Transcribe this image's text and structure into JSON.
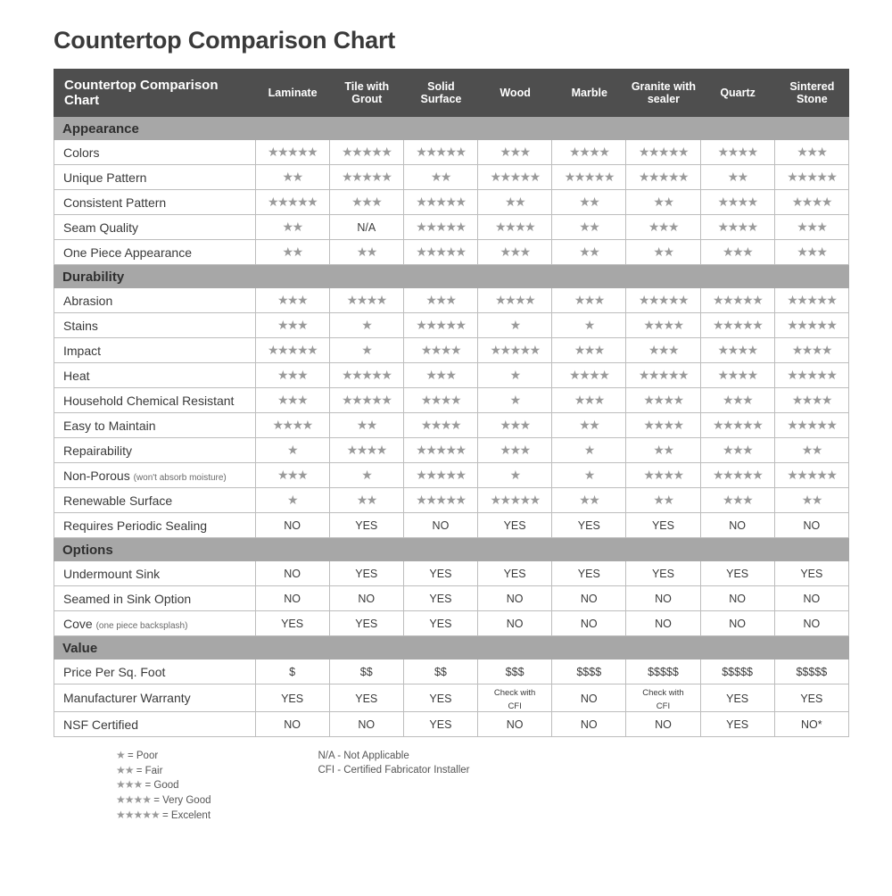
{
  "title": "Countertop Comparison Chart",
  "header_label": "Countertop Comparison Chart",
  "columns": [
    "Laminate",
    "Tile with Grout",
    "Solid Surface",
    "Wood",
    "Marble",
    "Granite with sealer",
    "Quartz",
    "Sintered Stone"
  ],
  "sections": [
    {
      "name": "Appearance",
      "rows": [
        {
          "label": "Colors",
          "cells": [
            {
              "stars": 5
            },
            {
              "stars": 5
            },
            {
              "stars": 5
            },
            {
              "stars": 3
            },
            {
              "stars": 4
            },
            {
              "stars": 5
            },
            {
              "stars": 4
            },
            {
              "stars": 3
            }
          ]
        },
        {
          "label": "Unique Pattern",
          "cells": [
            {
              "stars": 2
            },
            {
              "stars": 5
            },
            {
              "stars": 2
            },
            {
              "stars": 5
            },
            {
              "stars": 5
            },
            {
              "stars": 5
            },
            {
              "stars": 2
            },
            {
              "stars": 5
            }
          ]
        },
        {
          "label": "Consistent Pattern",
          "cells": [
            {
              "stars": 5
            },
            {
              "stars": 3
            },
            {
              "stars": 5
            },
            {
              "stars": 2
            },
            {
              "stars": 2
            },
            {
              "stars": 2
            },
            {
              "stars": 4
            },
            {
              "stars": 4
            }
          ]
        },
        {
          "label": "Seam Quality",
          "cells": [
            {
              "stars": 2
            },
            {
              "text": "N/A"
            },
            {
              "stars": 5
            },
            {
              "stars": 4
            },
            {
              "stars": 2
            },
            {
              "stars": 3
            },
            {
              "stars": 4
            },
            {
              "stars": 3
            }
          ]
        },
        {
          "label": "One Piece Appearance",
          "cells": [
            {
              "stars": 2
            },
            {
              "stars": 2
            },
            {
              "stars": 5
            },
            {
              "stars": 3
            },
            {
              "stars": 2
            },
            {
              "stars": 2
            },
            {
              "stars": 3
            },
            {
              "stars": 3
            }
          ]
        }
      ]
    },
    {
      "name": "Durability",
      "rows": [
        {
          "label": "Abrasion",
          "cells": [
            {
              "stars": 3
            },
            {
              "stars": 4
            },
            {
              "stars": 3
            },
            {
              "stars": 4
            },
            {
              "stars": 3
            },
            {
              "stars": 5
            },
            {
              "stars": 5
            },
            {
              "stars": 5
            }
          ]
        },
        {
          "label": "Stains",
          "cells": [
            {
              "stars": 3
            },
            {
              "stars": 1
            },
            {
              "stars": 5
            },
            {
              "stars": 1
            },
            {
              "stars": 1
            },
            {
              "stars": 4
            },
            {
              "stars": 5
            },
            {
              "stars": 5
            }
          ]
        },
        {
          "label": "Impact",
          "cells": [
            {
              "stars": 5
            },
            {
              "stars": 1
            },
            {
              "stars": 4
            },
            {
              "stars": 5
            },
            {
              "stars": 3
            },
            {
              "stars": 3
            },
            {
              "stars": 4
            },
            {
              "stars": 4
            }
          ]
        },
        {
          "label": "Heat",
          "cells": [
            {
              "stars": 3
            },
            {
              "stars": 5
            },
            {
              "stars": 3
            },
            {
              "stars": 1
            },
            {
              "stars": 4
            },
            {
              "stars": 5
            },
            {
              "stars": 4
            },
            {
              "stars": 5
            }
          ]
        },
        {
          "label": "Household Chemical Resistant",
          "cells": [
            {
              "stars": 3
            },
            {
              "stars": 5
            },
            {
              "stars": 4
            },
            {
              "stars": 1
            },
            {
              "stars": 3
            },
            {
              "stars": 4
            },
            {
              "stars": 3
            },
            {
              "stars": 4
            }
          ]
        },
        {
          "label": "Easy to Maintain",
          "cells": [
            {
              "stars": 4
            },
            {
              "stars": 2
            },
            {
              "stars": 4
            },
            {
              "stars": 3
            },
            {
              "stars": 2
            },
            {
              "stars": 4
            },
            {
              "stars": 5
            },
            {
              "stars": 5
            }
          ]
        },
        {
          "label": "Repairability",
          "cells": [
            {
              "stars": 1
            },
            {
              "stars": 4
            },
            {
              "stars": 5
            },
            {
              "stars": 3
            },
            {
              "stars": 1
            },
            {
              "stars": 2
            },
            {
              "stars": 3
            },
            {
              "stars": 2
            }
          ]
        },
        {
          "label": "Non-Porous",
          "sub": "(won't absorb moisture)",
          "cells": [
            {
              "stars": 3
            },
            {
              "stars": 1
            },
            {
              "stars": 5
            },
            {
              "stars": 1
            },
            {
              "stars": 1
            },
            {
              "stars": 4
            },
            {
              "stars": 5
            },
            {
              "stars": 5
            }
          ]
        },
        {
          "label": "Renewable Surface",
          "cells": [
            {
              "stars": 1
            },
            {
              "stars": 2
            },
            {
              "stars": 5
            },
            {
              "stars": 5
            },
            {
              "stars": 2
            },
            {
              "stars": 2
            },
            {
              "stars": 3
            },
            {
              "stars": 2
            }
          ]
        },
        {
          "label": "Requires Periodic Sealing",
          "cells": [
            {
              "text": "NO"
            },
            {
              "text": "YES"
            },
            {
              "text": "NO"
            },
            {
              "text": "YES"
            },
            {
              "text": "YES"
            },
            {
              "text": "YES"
            },
            {
              "text": "NO"
            },
            {
              "text": "NO"
            }
          ]
        }
      ]
    },
    {
      "name": "Options",
      "rows": [
        {
          "label": "Undermount Sink",
          "cells": [
            {
              "text": "NO"
            },
            {
              "text": "YES"
            },
            {
              "text": "YES"
            },
            {
              "text": "YES"
            },
            {
              "text": "YES"
            },
            {
              "text": "YES"
            },
            {
              "text": "YES"
            },
            {
              "text": "YES"
            }
          ]
        },
        {
          "label": "Seamed in Sink Option",
          "cells": [
            {
              "text": "NO"
            },
            {
              "text": "NO"
            },
            {
              "text": "YES"
            },
            {
              "text": "NO"
            },
            {
              "text": "NO"
            },
            {
              "text": "NO"
            },
            {
              "text": "NO"
            },
            {
              "text": "NO"
            }
          ]
        },
        {
          "label": "Cove",
          "sub": "(one piece backsplash)",
          "cells": [
            {
              "text": "YES"
            },
            {
              "text": "YES"
            },
            {
              "text": "YES"
            },
            {
              "text": "NO"
            },
            {
              "text": "NO"
            },
            {
              "text": "NO"
            },
            {
              "text": "NO"
            },
            {
              "text": "NO"
            }
          ]
        }
      ]
    },
    {
      "name": "Value",
      "rows": [
        {
          "label": "Price Per Sq. Foot",
          "cells": [
            {
              "text": "$"
            },
            {
              "text": "$$"
            },
            {
              "text": "$$"
            },
            {
              "text": "$$$"
            },
            {
              "text": "$$$$"
            },
            {
              "text": "$$$$$"
            },
            {
              "text": "$$$$$"
            },
            {
              "text": "$$$$$"
            }
          ]
        },
        {
          "label": "Manufacturer Warranty",
          "cells": [
            {
              "text": "YES"
            },
            {
              "text": "YES"
            },
            {
              "text": "YES"
            },
            {
              "text": "Check with CFI",
              "small": true
            },
            {
              "text": "NO"
            },
            {
              "text": "Check with CFI",
              "small": true
            },
            {
              "text": "YES"
            },
            {
              "text": "YES"
            }
          ]
        },
        {
          "label": "NSF Certified",
          "cells": [
            {
              "text": "NO"
            },
            {
              "text": "NO"
            },
            {
              "text": "YES"
            },
            {
              "text": "NO"
            },
            {
              "text": "NO"
            },
            {
              "text": "NO"
            },
            {
              "text": "YES"
            },
            {
              "text": "NO*"
            }
          ]
        }
      ]
    }
  ],
  "legend_stars": [
    {
      "stars": 1,
      "label": "= Poor"
    },
    {
      "stars": 2,
      "label": "= Fair"
    },
    {
      "stars": 3,
      "label": "= Good"
    },
    {
      "stars": 4,
      "label": "= Very Good"
    },
    {
      "stars": 5,
      "label": "= Excelent"
    }
  ],
  "legend_notes": [
    "N/A - Not Applicable",
    "CFI - Certified Fabricator Installer"
  ],
  "colors": {
    "header_bg": "#4e4e4e",
    "section_bg": "#a7a7a7",
    "border": "#bdbdbd",
    "star": "#9a9a9a",
    "text": "#3a3a3a",
    "bg": "#ffffff"
  }
}
